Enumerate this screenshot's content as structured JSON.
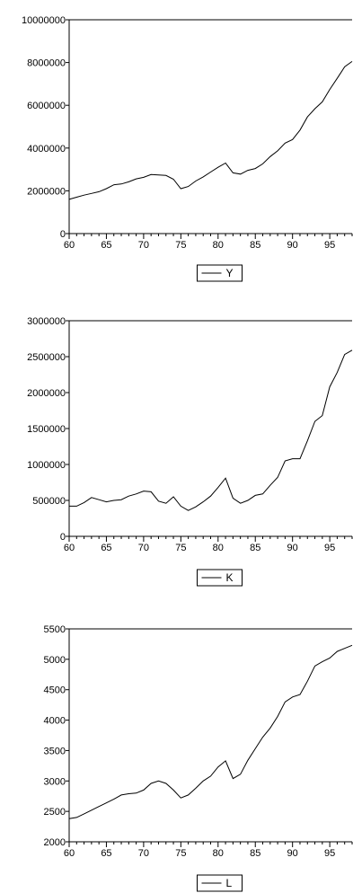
{
  "chart_data": [
    {
      "type": "line",
      "title": "",
      "xlabel": "",
      "ylabel": "",
      "legend": "bottom-center",
      "grid": false,
      "xlim": [
        60,
        98
      ],
      "ylim": [
        0,
        10000000
      ],
      "x_ticks": [
        60,
        65,
        70,
        75,
        80,
        85,
        90,
        95
      ],
      "y_ticks": [
        0,
        2000000,
        4000000,
        6000000,
        8000000,
        10000000
      ],
      "series": [
        {
          "name": "Y",
          "x": [
            60,
            61,
            62,
            63,
            64,
            65,
            66,
            67,
            68,
            69,
            70,
            71,
            72,
            73,
            74,
            75,
            76,
            77,
            78,
            79,
            80,
            81,
            82,
            83,
            84,
            85,
            86,
            87,
            88,
            89,
            90,
            91,
            92,
            93,
            94,
            95,
            96,
            97,
            98
          ],
          "y": [
            1600000,
            1700000,
            1800000,
            1880000,
            1960000,
            2100000,
            2280000,
            2320000,
            2420000,
            2560000,
            2630000,
            2760000,
            2740000,
            2720000,
            2540000,
            2100000,
            2200000,
            2460000,
            2650000,
            2880000,
            3100000,
            3300000,
            2840000,
            2780000,
            2960000,
            3040000,
            3260000,
            3600000,
            3870000,
            4230000,
            4400000,
            4840000,
            5460000,
            5840000,
            6160000,
            6740000,
            7260000,
            7800000,
            8050000
          ]
        }
      ]
    },
    {
      "type": "line",
      "title": "",
      "xlabel": "",
      "ylabel": "",
      "legend": "bottom-center",
      "grid": false,
      "xlim": [
        60,
        98
      ],
      "ylim": [
        0,
        3000000
      ],
      "x_ticks": [
        60,
        65,
        70,
        75,
        80,
        85,
        90,
        95
      ],
      "y_ticks": [
        0,
        500000,
        1000000,
        1500000,
        2000000,
        2500000,
        3000000
      ],
      "series": [
        {
          "name": "K",
          "x": [
            60,
            61,
            62,
            63,
            64,
            65,
            66,
            67,
            68,
            69,
            70,
            71,
            72,
            73,
            74,
            75,
            76,
            77,
            78,
            79,
            80,
            81,
            82,
            83,
            84,
            85,
            86,
            87,
            88,
            89,
            90,
            91,
            92,
            93,
            94,
            95,
            96,
            97,
            98
          ],
          "y": [
            420000,
            420000,
            470000,
            540000,
            510000,
            480000,
            500000,
            510000,
            560000,
            590000,
            630000,
            620000,
            490000,
            460000,
            550000,
            420000,
            360000,
            410000,
            480000,
            560000,
            680000,
            810000,
            530000,
            460000,
            500000,
            570000,
            590000,
            710000,
            820000,
            1050000,
            1080000,
            1080000,
            1330000,
            1600000,
            1680000,
            2080000,
            2280000,
            2530000,
            2590000
          ]
        }
      ]
    },
    {
      "type": "line",
      "title": "",
      "xlabel": "",
      "ylabel": "",
      "legend": "bottom-center",
      "grid": false,
      "xlim": [
        60,
        98
      ],
      "ylim": [
        2000,
        5500
      ],
      "x_ticks": [
        60,
        65,
        70,
        75,
        80,
        85,
        90,
        95
      ],
      "y_ticks": [
        2000,
        2500,
        3000,
        3500,
        4000,
        4500,
        5000,
        5500
      ],
      "series": [
        {
          "name": "L",
          "x": [
            60,
            61,
            62,
            63,
            64,
            65,
            66,
            67,
            68,
            69,
            70,
            71,
            72,
            73,
            74,
            75,
            76,
            77,
            78,
            79,
            80,
            81,
            82,
            83,
            84,
            85,
            86,
            87,
            88,
            89,
            90,
            91,
            92,
            93,
            94,
            95,
            96,
            97,
            98
          ],
          "y": [
            2380,
            2400,
            2460,
            2520,
            2580,
            2640,
            2700,
            2770,
            2790,
            2800,
            2850,
            2960,
            3000,
            2960,
            2850,
            2720,
            2770,
            2880,
            3000,
            3080,
            3230,
            3330,
            3040,
            3110,
            3340,
            3530,
            3720,
            3870,
            4060,
            4300,
            4380,
            4420,
            4640,
            4890,
            4960,
            5020,
            5130,
            5180,
            5230
          ]
        }
      ]
    }
  ]
}
